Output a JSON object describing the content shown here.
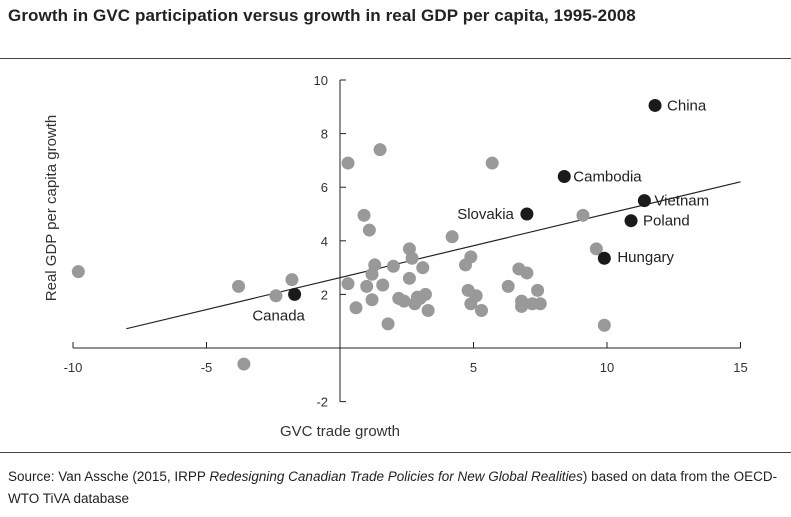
{
  "title": "Growth in GVC participation versus growth in real GDP per capita, 1995-2008",
  "source": {
    "prefix": "Source: Van Assche (2015, IRPP ",
    "italic": "Redesigning Canadian Trade Policies for New Global Realities",
    "suffix": ") based on data from the OECD-WTO TiVA database"
  },
  "chart_data": {
    "type": "scatter",
    "title": "Growth in GVC participation versus growth in real GDP per capita, 1995-2008",
    "xlabel": "GVC trade growth",
    "ylabel": "Real GDP per capita growth",
    "xlim": [
      -10,
      15
    ],
    "ylim": [
      -2,
      10
    ],
    "x_ticks": [
      -10,
      -5,
      5,
      10,
      15
    ],
    "x_tick_labels": [
      "-10",
      "-5",
      "5",
      "10",
      "15"
    ],
    "y_ticks": [
      -2,
      2,
      4,
      6,
      8,
      10
    ],
    "y_tick_labels": [
      "-2",
      "2",
      "4",
      "6",
      "8",
      "10"
    ],
    "grid": false,
    "trendline": {
      "x": [
        -8,
        15
      ],
      "y": [
        0.72,
        6.2
      ]
    },
    "colors": {
      "grey_point": "#999999",
      "highlight_point": "#1a1a1a",
      "line": "#222222"
    },
    "highlighted": [
      {
        "name": "China",
        "x": 11.8,
        "y": 9.05
      },
      {
        "name": "Cambodia",
        "x": 8.4,
        "y": 6.4
      },
      {
        "name": "Vietnam",
        "x": 11.4,
        "y": 5.5
      },
      {
        "name": "Slovakia",
        "x": 7.0,
        "y": 5.0
      },
      {
        "name": "Poland",
        "x": 10.9,
        "y": 4.75
      },
      {
        "name": "Hungary",
        "x": 9.9,
        "y": 3.35
      },
      {
        "name": "Canada",
        "x": -1.7,
        "y": 2.0
      }
    ],
    "points": [
      {
        "x": -9.8,
        "y": 2.85
      },
      {
        "x": -3.8,
        "y": 2.3
      },
      {
        "x": -3.6,
        "y": -0.6
      },
      {
        "x": -2.4,
        "y": 1.95
      },
      {
        "x": -1.8,
        "y": 2.55
      },
      {
        "x": 0.3,
        "y": 6.9
      },
      {
        "x": 0.3,
        "y": 2.4
      },
      {
        "x": 0.6,
        "y": 1.5
      },
      {
        "x": 0.9,
        "y": 4.95
      },
      {
        "x": 1.0,
        "y": 2.3
      },
      {
        "x": 1.1,
        "y": 4.4
      },
      {
        "x": 1.2,
        "y": 1.8
      },
      {
        "x": 1.2,
        "y": 2.75
      },
      {
        "x": 1.3,
        "y": 3.1
      },
      {
        "x": 1.5,
        "y": 7.4
      },
      {
        "x": 1.6,
        "y": 2.35
      },
      {
        "x": 1.8,
        "y": 0.9
      },
      {
        "x": 2.0,
        "y": 3.05
      },
      {
        "x": 2.2,
        "y": 1.85
      },
      {
        "x": 2.4,
        "y": 1.75
      },
      {
        "x": 2.6,
        "y": 3.7
      },
      {
        "x": 2.6,
        "y": 2.6
      },
      {
        "x": 2.7,
        "y": 3.35
      },
      {
        "x": 2.8,
        "y": 1.65
      },
      {
        "x": 2.9,
        "y": 1.9
      },
      {
        "x": 3.0,
        "y": 1.85
      },
      {
        "x": 3.1,
        "y": 3.0
      },
      {
        "x": 3.2,
        "y": 2.0
      },
      {
        "x": 3.3,
        "y": 1.4
      },
      {
        "x": 4.2,
        "y": 4.15
      },
      {
        "x": 4.7,
        "y": 3.1
      },
      {
        "x": 4.8,
        "y": 2.15
      },
      {
        "x": 4.9,
        "y": 3.4
      },
      {
        "x": 4.9,
        "y": 1.65
      },
      {
        "x": 5.1,
        "y": 1.95
      },
      {
        "x": 5.3,
        "y": 1.4
      },
      {
        "x": 5.7,
        "y": 6.9
      },
      {
        "x": 6.3,
        "y": 2.3
      },
      {
        "x": 6.7,
        "y": 2.95
      },
      {
        "x": 6.8,
        "y": 1.75
      },
      {
        "x": 6.8,
        "y": 1.55
      },
      {
        "x": 7.0,
        "y": 2.8
      },
      {
        "x": 7.2,
        "y": 1.65
      },
      {
        "x": 7.4,
        "y": 2.15
      },
      {
        "x": 7.5,
        "y": 1.65
      },
      {
        "x": 9.1,
        "y": 4.95
      },
      {
        "x": 9.6,
        "y": 3.7
      },
      {
        "x": 9.9,
        "y": 0.85
      }
    ]
  }
}
